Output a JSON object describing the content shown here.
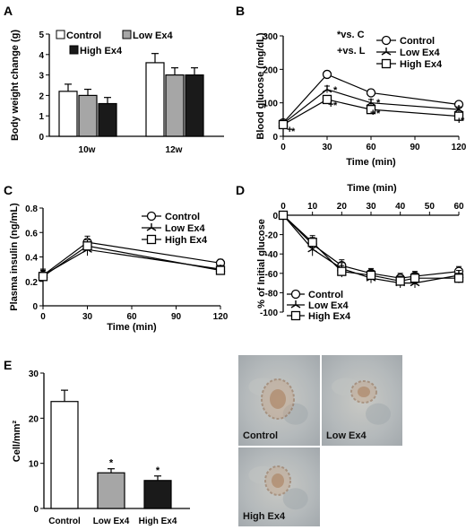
{
  "panels": [
    "A",
    "B",
    "C",
    "D",
    "E"
  ],
  "colors": {
    "control": "#ffffff",
    "low": "#a6a6a6",
    "high": "#1a1a1a",
    "stroke": "#000000"
  },
  "chart_data": [
    {
      "id": "A",
      "type": "bar",
      "ylabel": "Body weight change (g)",
      "xlabel": "",
      "ylim": [
        0,
        5
      ],
      "yticks": [
        "0",
        "1",
        "2",
        "3",
        "4",
        "5"
      ],
      "categories": [
        "10w",
        "12w"
      ],
      "legend": [
        "Control",
        "Low Ex4",
        "High Ex4"
      ],
      "series": [
        {
          "name": "Control",
          "values": [
            2.2,
            3.6
          ],
          "errors": [
            0.35,
            0.45
          ]
        },
        {
          "name": "Low Ex4",
          "values": [
            2.0,
            3.0
          ],
          "errors": [
            0.3,
            0.35
          ]
        },
        {
          "name": "High Ex4",
          "values": [
            1.6,
            3.0
          ],
          "errors": [
            0.3,
            0.35
          ]
        }
      ]
    },
    {
      "id": "B",
      "type": "line",
      "ylabel": "Blood glucose (mg/dL)",
      "xlabel": "Time (min)",
      "xlim": [
        0,
        120
      ],
      "ylim": [
        0,
        300
      ],
      "xticks": [
        "0",
        "30",
        "60",
        "90",
        "120"
      ],
      "yticks": [
        "0",
        "100",
        "200",
        "300"
      ],
      "x": [
        0,
        30,
        60,
        120
      ],
      "legend": [
        "Control",
        "Low Ex4",
        "High Ex4"
      ],
      "annotation_lines": [
        "*vs. C",
        "+vs. L"
      ],
      "marks": [
        "*",
        "*",
        "*",
        "*",
        "*",
        "*",
        "+",
        "+",
        "+",
        "+"
      ],
      "series": [
        {
          "name": "Control",
          "values": [
            40,
            185,
            130,
            95
          ],
          "errors": [
            8,
            10,
            10,
            8
          ]
        },
        {
          "name": "Low Ex4",
          "values": [
            38,
            140,
            100,
            80
          ],
          "errors": [
            8,
            10,
            10,
            8
          ]
        },
        {
          "name": "High Ex4",
          "values": [
            35,
            110,
            80,
            60
          ],
          "errors": [
            8,
            10,
            10,
            8
          ]
        }
      ]
    },
    {
      "id": "C",
      "type": "line",
      "ylabel": "Plasma insulin (ng/mL)",
      "xlabel": "Time (min)",
      "xlim": [
        0,
        120
      ],
      "ylim": [
        0,
        0.8
      ],
      "xticks": [
        "0",
        "30",
        "60",
        "90",
        "120"
      ],
      "yticks": [
        "0",
        "0.2",
        "0.4",
        "0.6",
        "0.8"
      ],
      "x": [
        0,
        30,
        120
      ],
      "legend": [
        "Control",
        "Low Ex4",
        "High Ex4"
      ],
      "series": [
        {
          "name": "Control",
          "values": [
            0.25,
            0.52,
            0.35
          ],
          "errors": [
            0.05,
            0.05,
            0.03
          ]
        },
        {
          "name": "Low Ex4",
          "values": [
            0.25,
            0.46,
            0.3
          ],
          "errors": [
            0.05,
            0.05,
            0.03
          ]
        },
        {
          "name": "High Ex4",
          "values": [
            0.24,
            0.49,
            0.29
          ],
          "errors": [
            0.05,
            0.05,
            0.03
          ]
        }
      ]
    },
    {
      "id": "D",
      "type": "line",
      "ylabel": "% of Initial glucose",
      "xlabel": "Time (min)",
      "xlim": [
        0,
        60
      ],
      "ylim": [
        -100,
        0
      ],
      "xticks": [
        "0",
        "10",
        "20",
        "30",
        "40",
        "50",
        "60"
      ],
      "yticks": [
        "0",
        "-20",
        "-40",
        "-60",
        "-80",
        "-100"
      ],
      "x": [
        0,
        10,
        20,
        30,
        40,
        45,
        60
      ],
      "legend": [
        "Control",
        "Low Ex4",
        "High Ex4"
      ],
      "series": [
        {
          "name": "Control",
          "values": [
            0,
            -30,
            -52,
            -60,
            -65,
            -63,
            -58
          ],
          "errors": [
            0,
            7,
            6,
            5,
            5,
            5,
            5
          ]
        },
        {
          "name": "Low Ex4",
          "values": [
            0,
            -35,
            -55,
            -65,
            -70,
            -70,
            -62
          ],
          "errors": [
            0,
            7,
            6,
            5,
            5,
            5,
            5
          ]
        },
        {
          "name": "High Ex4",
          "values": [
            0,
            -28,
            -58,
            -62,
            -68,
            -65,
            -65
          ],
          "errors": [
            0,
            7,
            6,
            5,
            5,
            5,
            5
          ]
        }
      ]
    },
    {
      "id": "E",
      "type": "bar",
      "ylabel": "Cell/mm²",
      "xlabel": "",
      "ylim": [
        0,
        30
      ],
      "yticks": [
        "0",
        "10",
        "20",
        "30"
      ],
      "categories": [
        "Control",
        "Low Ex4",
        "High Ex4"
      ],
      "values": [
        23.7,
        7.9,
        6.2
      ],
      "errors": [
        2.5,
        0.9,
        1.0
      ],
      "significance": [
        "",
        "*",
        "*"
      ]
    }
  ],
  "micrographs": [
    "Control",
    "Low Ex4",
    "High Ex4"
  ]
}
